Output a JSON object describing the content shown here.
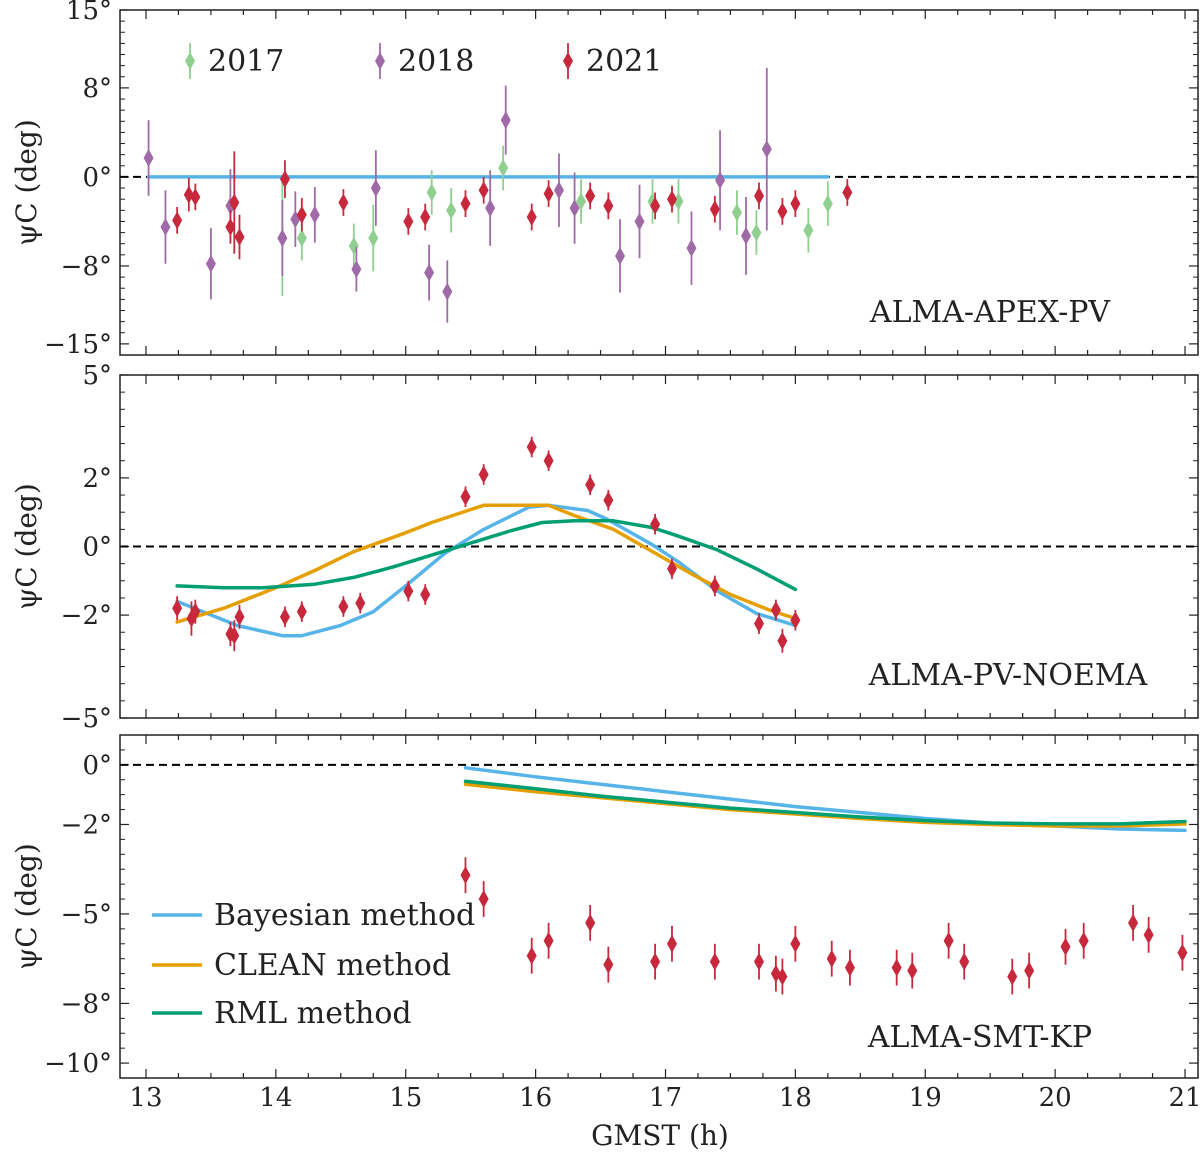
{
  "chart_data": {
    "type": "scatter",
    "xlabel": "GMST (h)",
    "xlim": [
      12.8,
      21.1
    ],
    "xticks": [
      13,
      14,
      15,
      16,
      17,
      18,
      19,
      20,
      21
    ],
    "xtick_labels": [
      "13",
      "14",
      "15",
      "16",
      "17",
      "18",
      "19",
      "20",
      "21"
    ],
    "colors": {
      "2017": "#8fcf8f",
      "2018": "#a06aa8",
      "2021": "#c8283c",
      "Bayesian": "#56b4e9",
      "CLEAN": "#e69f00",
      "RML": "#009e73",
      "zero": "#000000"
    },
    "panels": [
      {
        "label": "ALMA-APEX-PV",
        "ylabel": "ψ_C (deg)",
        "ylim": [
          -16,
          15
        ],
        "yticks": [
          -15,
          -8,
          0,
          8,
          15
        ],
        "ytick_labels": [
          "−15°",
          "−8°",
          "0°",
          "8°",
          "15°"
        ],
        "legend": [
          {
            "label": "2017",
            "color_key": "2017"
          },
          {
            "label": "2018",
            "color_key": "2018"
          },
          {
            "label": "2021",
            "color_key": "2021"
          }
        ],
        "series": [
          {
            "name": "2017",
            "color_key": "2017",
            "points": [
              [
                14.05,
                -5.5,
                5.2
              ],
              [
                14.2,
                -5.5,
                2
              ],
              [
                14.6,
                -6.2,
                2
              ],
              [
                14.75,
                -5.5,
                3
              ],
              [
                15.2,
                -1.4,
                2
              ],
              [
                15.35,
                -3,
                2
              ],
              [
                15.75,
                0.8,
                2
              ],
              [
                16.35,
                -2.2,
                2
              ],
              [
                16.9,
                -2.2,
                2
              ],
              [
                17.1,
                -2.2,
                2
              ],
              [
                17.55,
                -3.2,
                2
              ],
              [
                17.7,
                -5,
                2
              ],
              [
                18.1,
                -4.8,
                2
              ],
              [
                18.25,
                -2.4,
                2
              ]
            ]
          },
          {
            "name": "2018",
            "color_key": "2018",
            "points": [
              [
                13.02,
                1.7,
                3.4
              ],
              [
                13.15,
                -4.5,
                3.3
              ],
              [
                13.5,
                -7.8,
                3.2
              ],
              [
                13.65,
                -2.6,
                3.3
              ],
              [
                14.05,
                -5.5,
                3.4
              ],
              [
                14.15,
                -3.8,
                2.5
              ],
              [
                14.3,
                -3.4,
                2.5
              ],
              [
                14.62,
                -8.3,
                2
              ],
              [
                14.77,
                -1,
                3.4
              ],
              [
                15.18,
                -8.6,
                2.5
              ],
              [
                15.32,
                -10.3,
                2.8
              ],
              [
                15.65,
                -2.8,
                3.4
              ],
              [
                15.77,
                5.1,
                3.1
              ],
              [
                16.18,
                -1.2,
                3.3
              ],
              [
                16.3,
                -2.8,
                3.2
              ],
              [
                16.65,
                -7.1,
                3.3
              ],
              [
                16.8,
                -4,
                3.3
              ],
              [
                17.2,
                -6.4,
                3.3
              ],
              [
                17.42,
                -0.3,
                4.5
              ],
              [
                17.62,
                -5.3,
                3.5
              ],
              [
                17.78,
                2.5,
                7.3
              ]
            ]
          },
          {
            "name": "2021",
            "color_key": "2021",
            "points": [
              [
                13.24,
                -3.9,
                1.2
              ],
              [
                13.33,
                -1.6,
                1.5
              ],
              [
                13.38,
                -1.8,
                1.2
              ],
              [
                13.65,
                -4.5,
                1.5
              ],
              [
                13.68,
                -2.3,
                4.6
              ],
              [
                13.72,
                -5.4,
                2
              ],
              [
                14.07,
                -0.2,
                1.7
              ],
              [
                14.2,
                -3.4,
                1.5
              ],
              [
                14.52,
                -2.3,
                1.2
              ],
              [
                15.02,
                -4,
                1.2
              ],
              [
                15.15,
                -3.6,
                1.2
              ],
              [
                15.46,
                -2.4,
                1.2
              ],
              [
                15.6,
                -1.2,
                1.2
              ],
              [
                15.97,
                -3.6,
                1.2
              ],
              [
                16.1,
                -1.5,
                1.2
              ],
              [
                16.42,
                -1.7,
                1.2
              ],
              [
                16.56,
                -2.6,
                1.2
              ],
              [
                16.92,
                -2.6,
                1.2
              ],
              [
                17.05,
                -2,
                1.2
              ],
              [
                17.38,
                -2.9,
                1.2
              ],
              [
                17.72,
                -1.7,
                1.2
              ],
              [
                17.9,
                -3.1,
                1.2
              ],
              [
                18.0,
                -2.4,
                1.2
              ],
              [
                18.4,
                -1.4,
                1.2
              ]
            ]
          }
        ],
        "lines": [
          {
            "name": "Bayesian",
            "color_key": "Bayesian",
            "x": [
              13.02,
              14,
              15,
              16,
              17,
              18,
              18.25
            ],
            "y": [
              0,
              0,
              0,
              0,
              0,
              0,
              0
            ]
          }
        ]
      },
      {
        "label": "ALMA-PV-NOEMA",
        "ylabel": "ψ_C (deg)",
        "ylim": [
          -5,
          5
        ],
        "yticks": [
          -5,
          -2,
          0,
          2,
          5
        ],
        "ytick_labels": [
          "−5°",
          "−2°",
          "0°",
          "2°",
          "5°"
        ],
        "series": [
          {
            "name": "2021",
            "color_key": "2021",
            "points": [
              [
                13.24,
                -1.8,
                0.35
              ],
              [
                13.35,
                -2.1,
                0.5
              ],
              [
                13.38,
                -1.9,
                0.35
              ],
              [
                13.65,
                -2.55,
                0.35
              ],
              [
                13.68,
                -2.6,
                0.45
              ],
              [
                13.72,
                -2.05,
                0.35
              ],
              [
                14.07,
                -2.05,
                0.3
              ],
              [
                14.2,
                -1.9,
                0.3
              ],
              [
                14.52,
                -1.75,
                0.3
              ],
              [
                14.65,
                -1.65,
                0.3
              ],
              [
                15.02,
                -1.3,
                0.3
              ],
              [
                15.15,
                -1.4,
                0.3
              ],
              [
                15.46,
                1.45,
                0.3
              ],
              [
                15.6,
                2.1,
                0.3
              ],
              [
                15.97,
                2.9,
                0.3
              ],
              [
                16.1,
                2.5,
                0.3
              ],
              [
                16.42,
                1.8,
                0.3
              ],
              [
                16.56,
                1.35,
                0.3
              ],
              [
                16.92,
                0.65,
                0.3
              ],
              [
                17.05,
                -0.65,
                0.3
              ],
              [
                17.38,
                -1.15,
                0.3
              ],
              [
                17.72,
                -2.25,
                0.3
              ],
              [
                17.85,
                -1.85,
                0.3
              ],
              [
                17.9,
                -2.75,
                0.35
              ],
              [
                18.0,
                -2.15,
                0.3
              ]
            ]
          }
        ],
        "lines": [
          {
            "name": "Bayesian",
            "color_key": "Bayesian",
            "x": [
              13.24,
              13.7,
              14.05,
              14.2,
              14.5,
              14.75,
              15.0,
              15.3,
              15.6,
              15.95,
              16.1,
              16.4,
              16.55,
              16.9,
              17.1,
              17.4,
              17.7,
              18.0
            ],
            "y": [
              -1.6,
              -2.3,
              -2.6,
              -2.6,
              -2.3,
              -1.9,
              -1.15,
              -0.2,
              0.5,
              1.15,
              1.2,
              1.05,
              0.8,
              0.05,
              -0.45,
              -1.3,
              -1.95,
              -2.3
            ]
          },
          {
            "name": "CLEAN",
            "color_key": "CLEAN",
            "x": [
              13.24,
              13.6,
              14.0,
              14.3,
              14.6,
              15.0,
              15.2,
              15.4,
              15.6,
              15.9,
              16.1,
              16.3,
              16.6,
              16.9,
              17.2,
              17.5,
              17.8,
              18.0
            ],
            "y": [
              -2.2,
              -1.8,
              -1.2,
              -0.7,
              -0.15,
              0.4,
              0.7,
              0.95,
              1.2,
              1.2,
              1.2,
              0.9,
              0.5,
              -0.15,
              -0.8,
              -1.4,
              -1.85,
              -2.1
            ]
          },
          {
            "name": "RML",
            "color_key": "RML",
            "x": [
              13.24,
              13.6,
              13.9,
              14.3,
              14.6,
              14.9,
              15.2,
              15.5,
              15.8,
              16.05,
              16.3,
              16.6,
              16.9,
              17.1,
              17.4,
              17.7,
              18.0
            ],
            "y": [
              -1.15,
              -1.2,
              -1.2,
              -1.1,
              -0.9,
              -0.6,
              -0.25,
              0.1,
              0.45,
              0.7,
              0.75,
              0.75,
              0.55,
              0.3,
              -0.1,
              -0.65,
              -1.25
            ]
          }
        ]
      },
      {
        "label": "ALMA-SMT-KP",
        "ylabel": "ψ_C (deg)",
        "ylim": [
          -10.5,
          1
        ],
        "yticks": [
          -10,
          -8,
          -5,
          -2,
          0
        ],
        "ytick_labels": [
          "−10°",
          "−8°",
          "−5°",
          "−2°",
          "0°"
        ],
        "legend": [
          {
            "label": "Bayesian method",
            "color_key": "Bayesian"
          },
          {
            "label": "CLEAN method",
            "color_key": "CLEAN"
          },
          {
            "label": "RML method",
            "color_key": "RML"
          }
        ],
        "series": [
          {
            "name": "2021",
            "color_key": "2021",
            "points": [
              [
                15.46,
                -3.7,
                0.6
              ],
              [
                15.6,
                -4.5,
                0.6
              ],
              [
                15.97,
                -6.4,
                0.6
              ],
              [
                16.1,
                -5.9,
                0.6
              ],
              [
                16.42,
                -5.3,
                0.6
              ],
              [
                16.56,
                -6.7,
                0.6
              ],
              [
                16.92,
                -6.6,
                0.6
              ],
              [
                17.05,
                -6.0,
                0.6
              ],
              [
                17.38,
                -6.6,
                0.6
              ],
              [
                17.72,
                -6.6,
                0.6
              ],
              [
                17.85,
                -7.0,
                0.6
              ],
              [
                17.9,
                -7.1,
                0.6
              ],
              [
                18.0,
                -6.0,
                0.6
              ],
              [
                18.28,
                -6.5,
                0.6
              ],
              [
                18.42,
                -6.8,
                0.6
              ],
              [
                18.78,
                -6.8,
                0.6
              ],
              [
                18.9,
                -6.9,
                0.6
              ],
              [
                19.18,
                -5.9,
                0.6
              ],
              [
                19.3,
                -6.6,
                0.6
              ],
              [
                19.67,
                -7.1,
                0.6
              ],
              [
                19.8,
                -6.9,
                0.6
              ],
              [
                20.08,
                -6.1,
                0.6
              ],
              [
                20.22,
                -5.9,
                0.6
              ],
              [
                20.6,
                -5.3,
                0.6
              ],
              [
                20.72,
                -5.7,
                0.6
              ],
              [
                20.98,
                -6.3,
                0.6
              ]
            ]
          }
        ],
        "lines": [
          {
            "name": "Bayesian",
            "color_key": "Bayesian",
            "x": [
              15.46,
              16,
              16.5,
              17,
              17.5,
              18,
              18.5,
              19,
              19.5,
              20,
              20.5,
              21
            ],
            "y": [
              -0.1,
              -0.4,
              -0.65,
              -0.9,
              -1.15,
              -1.4,
              -1.6,
              -1.8,
              -1.95,
              -2.05,
              -2.15,
              -2.2
            ]
          },
          {
            "name": "CLEAN",
            "color_key": "CLEAN",
            "x": [
              15.46,
              16,
              16.5,
              17,
              17.5,
              18,
              18.5,
              19,
              19.5,
              20,
              20.5,
              21
            ],
            "y": [
              -0.65,
              -0.9,
              -1.1,
              -1.3,
              -1.5,
              -1.65,
              -1.8,
              -1.93,
              -2.0,
              -2.05,
              -2.05,
              -1.98
            ]
          },
          {
            "name": "RML",
            "color_key": "RML",
            "x": [
              15.46,
              16,
              16.5,
              17,
              17.5,
              18,
              18.5,
              19,
              19.5,
              20,
              20.5,
              21
            ],
            "y": [
              -0.55,
              -0.8,
              -1.05,
              -1.25,
              -1.45,
              -1.6,
              -1.75,
              -1.87,
              -1.95,
              -1.98,
              -1.98,
              -1.9
            ]
          }
        ]
      }
    ]
  }
}
